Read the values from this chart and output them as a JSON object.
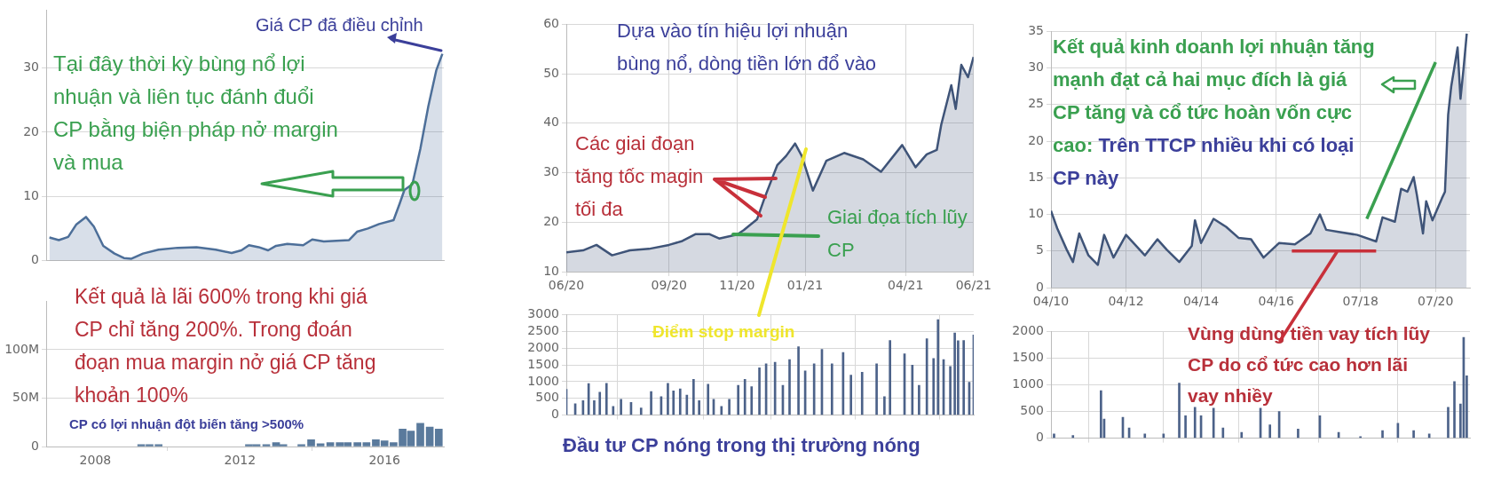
{
  "chart_data": [
    {
      "type": "area",
      "color": "#4d6f99",
      "xlim": [
        2006.64,
        2017.64
      ],
      "ylim": [
        0,
        39
      ],
      "yticks": [
        0,
        10,
        20,
        30
      ],
      "grid": "y",
      "tick_labels": "y",
      "x": [
        2006.73,
        2006.99,
        2007.25,
        2007.47,
        2007.74,
        2007.96,
        2008.22,
        2008.53,
        2008.79,
        2009.0,
        2009.32,
        2009.75,
        2010.28,
        2010.8,
        2011.33,
        2011.77,
        2012.04,
        2012.25,
        2012.52,
        2012.78,
        2013.0,
        2013.31,
        2013.75,
        2014.0,
        2014.32,
        2014.67,
        2015.02,
        2015.24,
        2015.54,
        2015.85,
        2016.25,
        2016.42,
        2016.55,
        2016.77,
        2016.99,
        2017.21,
        2017.43,
        2017.6
      ],
      "values": [
        3.6,
        3.2,
        3.7,
        5.6,
        6.8,
        5.3,
        2.3,
        1.1,
        0.4,
        0.3,
        1.1,
        1.7,
        2.0,
        2.1,
        1.7,
        1.2,
        1.6,
        2.4,
        2.1,
        1.6,
        2.3,
        2.6,
        2.4,
        3.3,
        3.0,
        3.1,
        3.2,
        4.5,
        5.0,
        5.7,
        6.3,
        8.9,
        11.0,
        11.9,
        17.4,
        24.0,
        29.6,
        32.2
      ],
      "annotations": [
        "Giá CP đã điều chỉnh",
        "Tại đây thời kỳ bùng nổ lợi nhuận và liên tục đánh đuổi CP bằng biện pháp nở margin và mua"
      ]
    },
    {
      "type": "bar",
      "color": "#5a7a9c",
      "xlim": [
        2006.64,
        2017.64
      ],
      "xticks": [
        2008,
        2012,
        2016
      ],
      "ylim": [
        0,
        150
      ],
      "yticks": [
        {
          "value": 0,
          "label": "0"
        },
        {
          "value": 50,
          "label": "50M"
        },
        {
          "value": 100,
          "label": "100M"
        }
      ],
      "grid": "y",
      "x": [
        2009.27,
        2009.5,
        2009.75,
        2012.25,
        2012.46,
        2012.73,
        2013.0,
        2013.2,
        2013.7,
        2013.97,
        2014.23,
        2014.5,
        2014.76,
        2014.98,
        2015.25,
        2015.5,
        2015.76,
        2016.0,
        2016.25,
        2016.5,
        2016.73,
        2016.99,
        2017.25,
        2017.5
      ],
      "values": [
        2,
        2,
        2,
        2,
        2,
        2,
        4,
        2,
        2,
        7,
        3,
        4,
        4,
        4,
        4,
        4,
        7,
        6,
        4,
        18,
        16,
        24,
        20,
        18
      ],
      "annotations": [
        "Kết quả là lãi 600% trong khi giá CP chỉ tăng 200%. Trong đoán đoạn mua margin nở giá CP tăng khoản 100%",
        "CP có lợi nhuận đột biến tăng >500%"
      ]
    },
    {
      "type": "area",
      "color": "#3f5478",
      "xlim": [
        "2020-06-01",
        "2021-06-01"
      ],
      "ylim": [
        10,
        60
      ],
      "yticks": [
        10,
        20,
        30,
        40,
        50,
        60
      ],
      "grid": true,
      "xticks": [
        {
          "value": "2020-06-01",
          "label": "06/20"
        },
        {
          "value": "2020-09-01",
          "label": "09/20"
        },
        {
          "value": "2020-11-01",
          "label": "11/20"
        },
        {
          "value": "2021-01-01",
          "label": "01/21"
        },
        {
          "value": "2021-04-01",
          "label": "04/21"
        },
        {
          "value": "2021-06-01",
          "label": "06/21"
        }
      ],
      "x": [
        "2020-06-01",
        "2020-06-16",
        "2020-06-28",
        "2020-07-12",
        "2020-07-28",
        "2020-08-14",
        "2020-09-01",
        "2020-09-13",
        "2020-09-25",
        "2020-10-07",
        "2020-10-16",
        "2020-11-01",
        "2020-11-07",
        "2020-11-19",
        "2020-11-26",
        "2020-12-07",
        "2020-12-15",
        "2020-12-23",
        "2020-12-29",
        "2021-01-08",
        "2021-01-20",
        "2021-02-05",
        "2021-02-22",
        "2021-03-10",
        "2021-03-29",
        "2021-04-10",
        "2021-04-20",
        "2021-04-29",
        "2021-05-03",
        "2021-05-12",
        "2021-05-16",
        "2021-05-21",
        "2021-05-27",
        "2021-06-01"
      ],
      "values": [
        13.9,
        14.3,
        15.4,
        13.3,
        14.3,
        14.6,
        15.4,
        16.2,
        17.6,
        17.6,
        16.7,
        17.5,
        18.4,
        20.6,
        25.1,
        31.5,
        33.4,
        35.9,
        33.4,
        26.4,
        32.4,
        34.0,
        32.7,
        30.2,
        35.6,
        31.1,
        33.7,
        34.6,
        39.7,
        47.7,
        42.9,
        51.8,
        49.3,
        53.4
      ],
      "annotations": [
        "Dựa vào tín hiệu lợi nhuận bùng nổ, dòng tiền lớn đổ vào",
        {
          "text": "Các giai đoạn tăng tốc magin tối đa",
          "x": "2020-11-26",
          "y": 25
        },
        {
          "text": "Giai đọa tích lũy CP",
          "x": "2020-11-01",
          "y": 17.5
        }
      ]
    },
    {
      "type": "bar",
      "color": "#4c6289",
      "xlim": [
        "2020-06-01",
        "2021-06-01"
      ],
      "ylim": [
        0,
        3000
      ],
      "yticks": [
        0,
        500,
        1000,
        1500,
        2000,
        2500,
        3000
      ],
      "grid": true,
      "tick_labels": "y",
      "xticks": [
        {
          "value": "2020-06-01",
          "label": null
        },
        {
          "value": "2020-09-01",
          "label": null
        },
        {
          "value": "2020-11-01",
          "label": null
        },
        {
          "value": "2021-01-01",
          "label": null
        },
        {
          "value": "2021-04-01",
          "label": null
        },
        {
          "value": "2021-06-01",
          "label": null
        }
      ],
      "x": [
        "2020-06-01",
        "2020-06-09",
        "2020-06-16",
        "2020-06-21",
        "2020-06-26",
        "2020-07-01",
        "2020-07-07",
        "2020-07-13",
        "2020-07-20",
        "2020-07-29",
        "2020-08-07",
        "2020-08-16",
        "2020-08-25",
        "2020-08-31",
        "2020-09-05",
        "2020-09-11",
        "2020-09-17",
        "2020-09-23",
        "2020-09-28",
        "2020-10-06",
        "2020-10-11",
        "2020-10-18",
        "2020-10-25",
        "2020-11-02",
        "2020-11-08",
        "2020-11-14",
        "2020-11-21",
        "2020-11-27",
        "2020-12-05",
        "2020-12-12",
        "2020-12-18",
        "2020-12-26",
        "2021-01-01",
        "2021-01-09",
        "2021-01-16",
        "2021-01-25",
        "2021-02-04",
        "2021-02-11",
        "2021-02-21",
        "2021-03-06",
        "2021-03-13",
        "2021-03-18",
        "2021-03-31",
        "2021-04-07",
        "2021-04-13",
        "2021-04-20",
        "2021-04-26",
        "2021-04-30",
        "2021-05-05",
        "2021-05-11",
        "2021-05-15",
        "2021-05-18",
        "2021-05-23",
        "2021-05-28",
        "2021-06-01"
      ],
      "values": [
        770,
        340,
        430,
        940,
        430,
        680,
        950,
        260,
        470,
        380,
        210,
        700,
        550,
        950,
        720,
        780,
        600,
        1070,
        430,
        920,
        470,
        260,
        470,
        890,
        1070,
        850,
        1410,
        1530,
        1580,
        890,
        1660,
        2040,
        1320,
        1530,
        1960,
        1530,
        1870,
        1190,
        1280,
        1530,
        550,
        2230,
        1830,
        1490,
        890,
        2280,
        1690,
        2850,
        1660,
        1450,
        2450,
        2220,
        2230,
        980,
        2390
      ],
      "annotations": [
        "Điểm stop margin",
        "Đầu tư CP nóng trong thị trường nóng"
      ]
    },
    {
      "type": "area",
      "xlim": [
        "2010-04-01",
        "2021-06-01"
      ],
      "ylim": [
        0,
        35
      ],
      "yticks": [
        0,
        5,
        10,
        15,
        20,
        25,
        30,
        35
      ],
      "grid": true,
      "xticks": [
        {
          "value": "2010-04-01",
          "label": "04/10"
        },
        {
          "value": "2012-04-01",
          "label": "04/12"
        },
        {
          "value": "2014-04-01",
          "label": "04/14"
        },
        {
          "value": "2016-04-01",
          "label": "04/16"
        },
        {
          "value": "2018-07-01",
          "label": "07/18"
        },
        {
          "value": "2020-07-01",
          "label": "07/20"
        }
      ],
      "series": [
        {
          "color": "#3f5478",
          "x": [
            "2010-04",
            "2010-06",
            "2010-09",
            "2010-11",
            "2011-01",
            "2011-04",
            "2011-07",
            "2011-09",
            "2011-12",
            "2012-04",
            "2012-10",
            "2013-02",
            "2013-05",
            "2013-09",
            "2014-01",
            "2014-02",
            "2014-04",
            "2014-08",
            "2014-12",
            "2015-04",
            "2015-08",
            "2015-12",
            "2016-05",
            "2016-10",
            "2017-03",
            "2017-06",
            "2017-08",
            "2017-12",
            "2018-06",
            "2018-12",
            "2019-02",
            "2019-06",
            "2019-08",
            "2019-10",
            "2019-12",
            "2020-01",
            "2020-03",
            "2020-04",
            "2020-06",
            "2020-09",
            "2020-10",
            "2020-11",
            "2020-12",
            "2021-02",
            "2021-03",
            "2021-04",
            "2021-05"
          ],
          "values": [
            10.5,
            8.1,
            5.2,
            3.5,
            7.4,
            4.4,
            3.1,
            7.2,
            4.1,
            7.2,
            4.4,
            6.6,
            5.2,
            3.5,
            5.7,
            9.2,
            6.1,
            9.4,
            8.3,
            6.8,
            6.6,
            4.1,
            6.1,
            5.9,
            7.4,
            10.0,
            7.9,
            7.6,
            7.2,
            6.3,
            9.6,
            9.0,
            13.5,
            13.1,
            15.1,
            12.7,
            7.4,
            11.8,
            9.2,
            12.2,
            13.1,
            23.6,
            27.5,
            32.8,
            25.8,
            30.1,
            34.7
          ]
        },
        {
          "type": "line",
          "color": "#c8303a",
          "x": [
            "2016-09",
            "2018-12"
          ],
          "values": [
            5,
            5
          ]
        },
        {
          "type": "line",
          "color": "#3aa050",
          "x": [
            "2018-09",
            "2020-07"
          ],
          "values": [
            9.4,
            30.8
          ]
        }
      ],
      "annotations": [
        "Kết quả kinh doanh lợi nhuận tăng mạnh đạt cả hai mục đích là giá CP tăng và cổ tức hoàn vốn cực cao:",
        "Trên TTCP nhiều khi có loại CP này"
      ]
    },
    {
      "type": "bar",
      "color": "#4c6289",
      "xlim": [
        "2010-04-01",
        "2021-06-01"
      ],
      "ylim": [
        0,
        2000
      ],
      "yticks": [
        0,
        500,
        1000,
        1500,
        2000
      ],
      "grid": true,
      "tick_labels": "y",
      "xticks": [
        {
          "value": "2010-04-01",
          "label": null
        },
        {
          "value": "2012-04-01",
          "label": null
        },
        {
          "value": "2014-04-01",
          "label": null
        },
        {
          "value": "2016-04-01",
          "label": null
        },
        {
          "value": "2018-07-01",
          "label": null
        },
        {
          "value": "2020-07-01",
          "label": null
        }
      ],
      "x": [
        "2010-05",
        "2010-11",
        "2011-08",
        "2011-09",
        "2012-03",
        "2012-05",
        "2012-10",
        "2013-04",
        "2013-09",
        "2013-11",
        "2014-02",
        "2014-04",
        "2014-08",
        "2014-11",
        "2015-05",
        "2015-11",
        "2016-02",
        "2016-05",
        "2016-11",
        "2017-06",
        "2017-12",
        "2018-07",
        "2019-02",
        "2019-07",
        "2019-12",
        "2020-05",
        "2020-11",
        "2021-01",
        "2021-03",
        "2021-04",
        "2021-05"
      ],
      "values": [
        80,
        50,
        890,
        360,
        390,
        190,
        80,
        80,
        1030,
        420,
        580,
        420,
        560,
        190,
        110,
        560,
        250,
        500,
        170,
        420,
        110,
        30,
        140,
        280,
        140,
        80,
        580,
        1060,
        640,
        1890,
        1170
      ],
      "annotations": [
        "Vùng dùng tiền vay tích lũy CP do cổ tức cao hơn lãi vay nhiềy"
      ]
    }
  ]
}
